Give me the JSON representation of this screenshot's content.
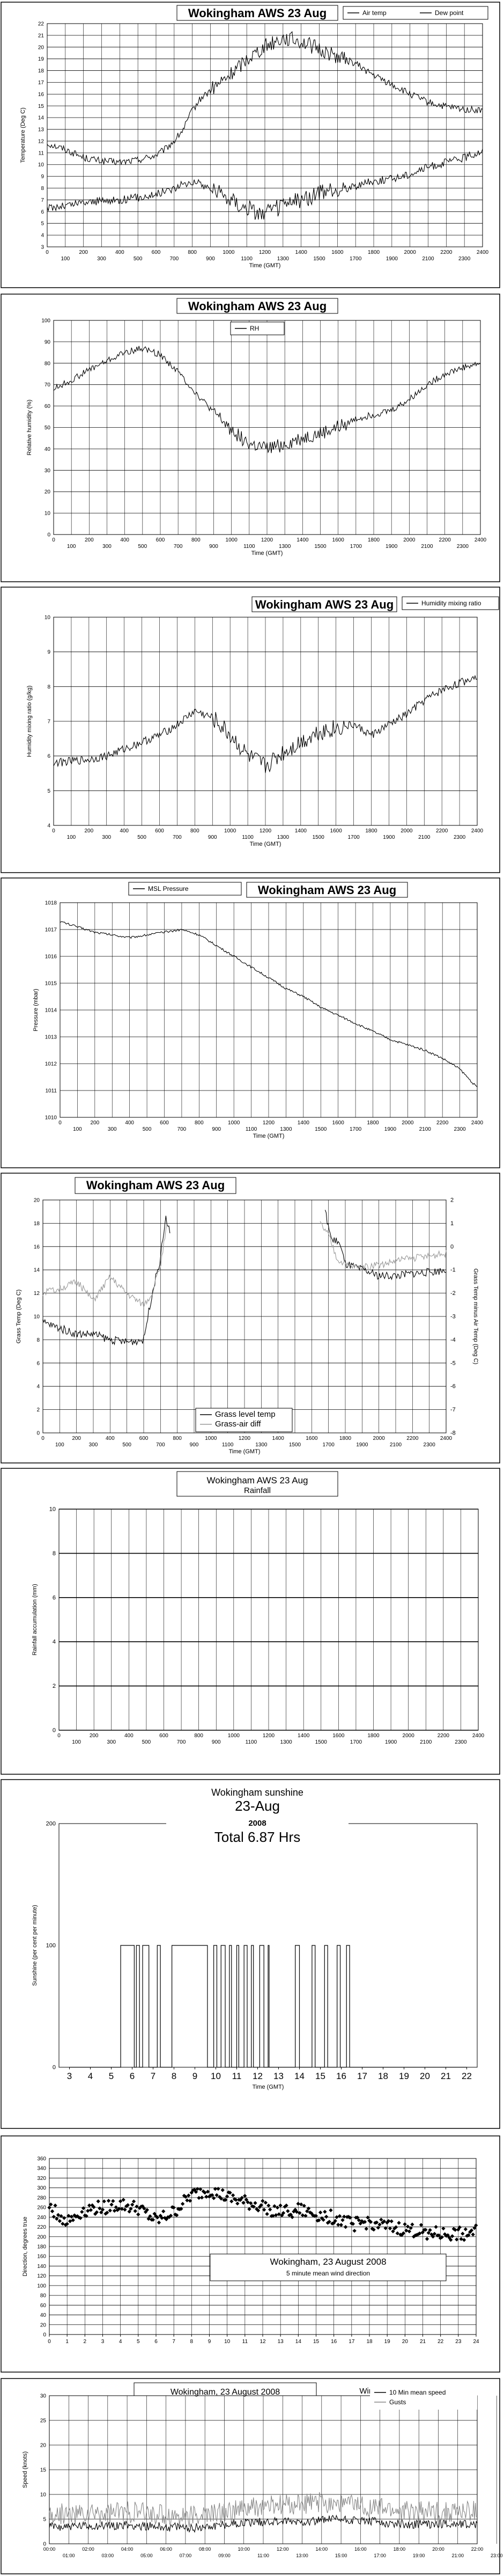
{
  "chart_data": [
    {
      "type": "line",
      "title": "Wokingham AWS 23 Aug",
      "xlabel": "Time (GMT)",
      "ylabel": "Temperature (Deg C)",
      "xlim": [
        0,
        2400
      ],
      "ylim": [
        3,
        22
      ],
      "grid": true,
      "legend_placement": "top-right",
      "xticks_top": [
        "0",
        "200",
        "400",
        "600",
        "800",
        "1000",
        "1200",
        "1400",
        "1600",
        "1800",
        "2000",
        "2200",
        "2400"
      ],
      "xticks_bottom": [
        "100",
        "300",
        "500",
        "700",
        "900",
        "1100",
        "1300",
        "1500",
        "1700",
        "1900",
        "2100",
        "2300"
      ],
      "yticks": [
        "3",
        "4",
        "5",
        "6",
        "7",
        "8",
        "9",
        "10",
        "11",
        "12",
        "13",
        "14",
        "15",
        "16",
        "17",
        "18",
        "19",
        "20",
        "21",
        "22"
      ],
      "series": [
        {
          "name": "Air temp",
          "color": "#000000",
          "noise": 0.3,
          "x": [
            0,
            100,
            200,
            300,
            400,
            500,
            600,
            650,
            700,
            750,
            800,
            850,
            900,
            1000,
            1100,
            1200,
            1300,
            1400,
            1500,
            1600,
            1700,
            1800,
            1900,
            2000,
            2100,
            2200,
            2300,
            2400
          ],
          "y": [
            11.8,
            11.3,
            10.6,
            10.3,
            10.2,
            10.4,
            10.8,
            11.3,
            12.0,
            13.0,
            14.6,
            15.7,
            16.3,
            17.5,
            19.0,
            20.1,
            20.8,
            20.5,
            19.8,
            19.2,
            18.6,
            17.6,
            16.8,
            16.0,
            15.3,
            14.9,
            14.7,
            14.6
          ]
        },
        {
          "name": "Dew point",
          "color": "#000000",
          "noise": 0.35,
          "x": [
            0,
            100,
            200,
            300,
            400,
            500,
            600,
            700,
            800,
            900,
            1000,
            1100,
            1200,
            1300,
            1400,
            1500,
            1600,
            1700,
            1800,
            1900,
            2000,
            2100,
            2200,
            2300,
            2400
          ],
          "y": [
            6.3,
            6.5,
            6.8,
            6.9,
            7.0,
            7.2,
            7.5,
            8.0,
            8.6,
            8.0,
            7.2,
            6.3,
            5.8,
            6.5,
            7.0,
            7.5,
            7.8,
            8.2,
            8.6,
            8.8,
            9.2,
            9.8,
            10.2,
            10.6,
            11.2
          ]
        }
      ]
    },
    {
      "type": "line",
      "title": "Wokingham AWS 23 Aug",
      "xlabel": "Time (GMT)",
      "ylabel": "Relative humidity (%)",
      "xlim": [
        0,
        2400
      ],
      "ylim": [
        0,
        100
      ],
      "grid": true,
      "legend_placement": "top-center",
      "xticks_top": [
        "0",
        "200",
        "400",
        "600",
        "800",
        "1000",
        "1200",
        "1400",
        "1600",
        "1800",
        "2000",
        "2200",
        "2400"
      ],
      "xticks_bottom": [
        "100",
        "300",
        "500",
        "700",
        "900",
        "1100",
        "1300",
        "1500",
        "1700",
        "1900",
        "2100",
        "2300"
      ],
      "yticks": [
        "0",
        "10",
        "20",
        "30",
        "40",
        "50",
        "60",
        "70",
        "80",
        "90",
        "100"
      ],
      "series": [
        {
          "name": "RH",
          "color": "#000000",
          "noise": 1.5,
          "x": [
            0,
            100,
            200,
            300,
            400,
            500,
            600,
            700,
            800,
            900,
            1000,
            1100,
            1200,
            1300,
            1400,
            1500,
            1600,
            1700,
            1800,
            1900,
            2000,
            2100,
            2200,
            2300,
            2400
          ],
          "y": [
            68,
            72,
            77,
            81,
            85,
            87,
            84,
            76,
            66,
            57,
            49,
            42,
            40,
            42,
            45,
            47,
            50,
            54,
            56,
            58,
            63,
            70,
            75,
            78,
            80
          ]
        }
      ]
    },
    {
      "type": "line",
      "title": "Wokingham AWS 23 Aug",
      "xlabel": "Time (GMT)",
      "ylabel": "Humidity mixing ratio (g/kg)",
      "xlim": [
        0,
        2400
      ],
      "ylim": [
        4,
        10
      ],
      "grid": true,
      "legend_placement": "top-right",
      "xticks_top": [
        "0",
        "200",
        "400",
        "600",
        "800",
        "1000",
        "1200",
        "1400",
        "1600",
        "1800",
        "2000",
        "2200",
        "2400"
      ],
      "xticks_bottom": [
        "100",
        "300",
        "500",
        "700",
        "900",
        "1100",
        "1300",
        "1500",
        "1700",
        "1900",
        "2100",
        "2300"
      ],
      "yticks": [
        "4",
        "5",
        "6",
        "7",
        "8",
        "9",
        "10"
      ],
      "series": [
        {
          "name": "Humidity mixing ratio",
          "color": "#000000",
          "noise": 0.12,
          "x": [
            0,
            100,
            200,
            300,
            400,
            500,
            600,
            700,
            800,
            900,
            1000,
            1100,
            1200,
            1300,
            1400,
            1500,
            1600,
            1700,
            1800,
            1900,
            2000,
            2100,
            2200,
            2300,
            2400
          ],
          "y": [
            5.8,
            5.85,
            5.9,
            6.0,
            6.2,
            6.4,
            6.6,
            6.9,
            7.3,
            7.1,
            6.6,
            6.0,
            5.7,
            6.1,
            6.4,
            6.7,
            6.8,
            6.9,
            6.6,
            6.9,
            7.2,
            7.6,
            7.9,
            8.1,
            8.3
          ]
        }
      ]
    },
    {
      "type": "line",
      "title": "Wokingham AWS 23 Aug",
      "xlabel": "Time (GMT)",
      "ylabel": "Pressure (mbar)",
      "xlim": [
        0,
        2400
      ],
      "ylim": [
        1010,
        1018
      ],
      "grid": true,
      "legend_placement": "top-left",
      "xticks_top": [
        "0",
        "200",
        "400",
        "600",
        "800",
        "1000",
        "1200",
        "1400",
        "1600",
        "1800",
        "2000",
        "2200",
        "2400"
      ],
      "xticks_bottom": [
        "100",
        "300",
        "500",
        "700",
        "900",
        "1100",
        "1300",
        "1500",
        "1700",
        "1900",
        "2100",
        "2300"
      ],
      "yticks": [
        "1010",
        "1011",
        "1012",
        "1013",
        "1014",
        "1015",
        "1016",
        "1017",
        "1018"
      ],
      "series": [
        {
          "name": "MSL Pressure",
          "color": "#000000",
          "noise": 0.04,
          "x": [
            0,
            100,
            200,
            300,
            400,
            500,
            600,
            700,
            800,
            900,
            1000,
            1100,
            1200,
            1300,
            1400,
            1500,
            1600,
            1700,
            1800,
            1900,
            2000,
            2100,
            2200,
            2300,
            2400
          ],
          "y": [
            1017.3,
            1017.1,
            1016.9,
            1016.8,
            1016.7,
            1016.8,
            1016.9,
            1017.0,
            1016.8,
            1016.4,
            1016.0,
            1015.6,
            1015.2,
            1014.8,
            1014.5,
            1014.1,
            1013.8,
            1013.5,
            1013.2,
            1012.9,
            1012.7,
            1012.5,
            1012.2,
            1011.8,
            1011.1
          ]
        }
      ]
    },
    {
      "type": "line",
      "title": "Wokingham AWS 23 Aug",
      "xlabel": "Time (GMT)",
      "ylabel": "Grass Temp (Deg C)",
      "y2label": "Grass Temp minus Air Temp (Deg C)",
      "xlim": [
        0,
        2400
      ],
      "ylim": [
        0,
        20
      ],
      "y2lim": [
        -8,
        2
      ],
      "grid": true,
      "legend_placement": "bottom-center",
      "xticks_top": [
        "0",
        "200",
        "400",
        "600",
        "800",
        "1000",
        "1200",
        "1400",
        "1600",
        "1800",
        "2000",
        "2200",
        "2400"
      ],
      "xticks_bottom": [
        "100",
        "300",
        "500",
        "700",
        "900",
        "1100",
        "1300",
        "1500",
        "1700",
        "1900",
        "2100",
        "2300"
      ],
      "yticks": [
        "0",
        "2",
        "4",
        "6",
        "8",
        "10",
        "12",
        "14",
        "16",
        "18",
        "20"
      ],
      "y2ticks": [
        "-8",
        "-7",
        "-6",
        "-5",
        "-4",
        "-3",
        "-2",
        "-1",
        "0",
        "1",
        "2"
      ],
      "series": [
        {
          "name": "Grass level temp",
          "color": "#000000",
          "axis": "left",
          "noise": 0.35,
          "segments": [
            {
              "x": [
                0,
                100,
                200,
                300,
                400,
                500,
                600,
                650,
                700,
                730,
                760
              ],
              "y": [
                9.5,
                9.0,
                8.5,
                8.5,
                8.0,
                7.8,
                8.0,
                12.0,
                15.0,
                18.5,
                17.0
              ]
            },
            {
              "x": [
                1680,
                1720,
                1760,
                1800,
                1900,
                2000,
                2100,
                2200,
                2300,
                2400
              ],
              "y": [
                19.0,
                16.5,
                16.5,
                14.5,
                14.0,
                13.5,
                13.5,
                13.7,
                13.8,
                14.0
              ]
            }
          ]
        },
        {
          "name": "Grass-air diff",
          "color": "#999999",
          "axis": "right",
          "noise": 0.15,
          "segments": [
            {
              "x": [
                0,
                100,
                200,
                300,
                400,
                500,
                600,
                650,
                700,
                740
              ],
              "y": [
                -2.0,
                -1.8,
                -1.5,
                -2.3,
                -1.3,
                -2.0,
                -2.5,
                -2.0,
                -0.8,
                1.0
              ]
            },
            {
              "x": [
                1650,
                1700,
                1750,
                1800,
                1900,
                2000,
                2100,
                2200,
                2300,
                2400
              ],
              "y": [
                1.0,
                0.5,
                -0.5,
                -0.8,
                -0.9,
                -0.8,
                -0.6,
                -0.5,
                -0.4,
                -0.3
              ]
            }
          ]
        }
      ]
    },
    {
      "type": "line",
      "title": "Wokingham AWS 23 Aug",
      "subtitle": "Rainfall",
      "xlabel": "",
      "ylabel": "Rainfall accumulation (mm)",
      "xlim": [
        0,
        2400
      ],
      "ylim": [
        0,
        10
      ],
      "grid": true,
      "xticks_top": [
        "0",
        "200",
        "400",
        "600",
        "800",
        "1000",
        "1200",
        "1400",
        "1600",
        "1800",
        "2000",
        "2200",
        "2400"
      ],
      "xticks_bottom": [
        "100",
        "300",
        "500",
        "700",
        "900",
        "1100",
        "1300",
        "1500",
        "1700",
        "1900",
        "2100",
        "2300"
      ],
      "yticks": [
        "0",
        "2",
        "4",
        "6",
        "8",
        "10"
      ],
      "series": []
    },
    {
      "type": "line",
      "title": "Wokingham sunshine",
      "subtitle": "23-Aug",
      "year_label": "2008",
      "total_label": "Total 6.87 Hrs",
      "xlabel": "Time (GMT)",
      "ylabel": "Sunshine (per cent per minute)",
      "xlim": [
        2.5,
        22.5
      ],
      "ylim": [
        0,
        200
      ],
      "grid": false,
      "xticks": [
        "3",
        "4",
        "5",
        "6",
        "7",
        "8",
        "9",
        "10",
        "11",
        "12",
        "13",
        "14",
        "15",
        "16",
        "17",
        "18",
        "19",
        "20",
        "21",
        "22"
      ],
      "yticks": [
        "0",
        "100",
        "200"
      ],
      "on_intervals": [
        [
          5.45,
          6.1
        ],
        [
          6.2,
          6.35
        ],
        [
          6.5,
          6.8
        ],
        [
          7.2,
          7.35
        ],
        [
          7.9,
          9.6
        ],
        [
          9.9,
          10.05
        ],
        [
          10.25,
          10.45
        ],
        [
          10.65,
          10.75
        ],
        [
          11.0,
          11.1
        ],
        [
          11.35,
          11.5
        ],
        [
          11.7,
          11.8
        ],
        [
          12.1,
          12.3
        ],
        [
          12.5,
          12.55
        ],
        [
          13.8,
          14.0
        ],
        [
          14.6,
          14.75
        ],
        [
          15.2,
          15.35
        ],
        [
          15.8,
          15.95
        ],
        [
          16.25,
          16.4
        ]
      ],
      "series": []
    },
    {
      "type": "scatter",
      "title": "Wokingham,  23 August 2008",
      "subtitle": "5 minute mean wind direction",
      "xlabel": "",
      "ylabel": "Direction, degrees true",
      "xlim": [
        0,
        24
      ],
      "ylim": [
        0,
        360
      ],
      "grid": true,
      "xticks": [
        "0",
        "1",
        "2",
        "3",
        "4",
        "5",
        "6",
        "7",
        "8",
        "9",
        "10",
        "11",
        "12",
        "13",
        "14",
        "15",
        "16",
        "17",
        "18",
        "19",
        "20",
        "21",
        "22",
        "23",
        "24"
      ],
      "yticks": [
        "0",
        "20",
        "40",
        "60",
        "80",
        "100",
        "120",
        "140",
        "160",
        "180",
        "200",
        "220",
        "240",
        "260",
        "280",
        "300",
        "320",
        "340",
        "360"
      ],
      "series": [
        {
          "name": "",
          "color": "#000000",
          "noise": 14,
          "step": 0.0833,
          "x": [
            0,
            1,
            2,
            3,
            4,
            5,
            6,
            7,
            8,
            9,
            10,
            11,
            12,
            13,
            14,
            15,
            16,
            17,
            18,
            19,
            20,
            21,
            22,
            23,
            24
          ],
          "y": [
            260,
            230,
            255,
            260,
            265,
            258,
            232,
            250,
            285,
            295,
            280,
            270,
            262,
            250,
            255,
            245,
            240,
            225,
            230,
            220,
            215,
            210,
            205,
            205,
            210
          ]
        }
      ]
    },
    {
      "type": "line",
      "title": "Wokingham,  23 August 2008",
      "subtitle": "Wind speed",
      "xlabel": "",
      "ylabel": "Speed (knots)",
      "xlim": [
        0,
        24
      ],
      "ylim": [
        0,
        30
      ],
      "grid": true,
      "legend_placement": "top-right",
      "xticks_top": [
        "00:00",
        "02:00",
        "04:00",
        "06:00",
        "08:00",
        "10:00",
        "12:00",
        "14:00",
        "16:00",
        "18:00",
        "20:00",
        "22:00"
      ],
      "xticks_bottom": [
        "01:00",
        "03:00",
        "05:00",
        "07:00",
        "09:00",
        "11:00",
        "13:00",
        "15:00",
        "17:00",
        "19:00",
        "21:00",
        "23:00"
      ],
      "yticks": [
        "0",
        "5",
        "10",
        "15",
        "20",
        "25",
        "30"
      ],
      "series": [
        {
          "name": "10 Min mean speed",
          "color": "#000000",
          "noise": 0.9,
          "step": 0.05,
          "x": [
            0,
            2,
            4,
            6,
            8,
            10,
            12,
            14,
            16,
            18,
            20,
            22,
            24
          ],
          "y": [
            3.5,
            3.5,
            3.8,
            3.5,
            3.2,
            4.0,
            4.5,
            4.5,
            5.0,
            4.5,
            4.0,
            4.0,
            4.0
          ]
        },
        {
          "name": "Gusts",
          "color": "#888888",
          "noise": 2.2,
          "step": 0.05,
          "x": [
            0,
            2,
            4,
            6,
            8,
            10,
            12,
            14,
            16,
            18,
            20,
            22,
            24
          ],
          "y": [
            6.0,
            6.0,
            6.5,
            6.0,
            5.5,
            6.5,
            7.5,
            8.0,
            8.5,
            7.5,
            6.5,
            6.5,
            6.5
          ]
        }
      ]
    }
  ]
}
